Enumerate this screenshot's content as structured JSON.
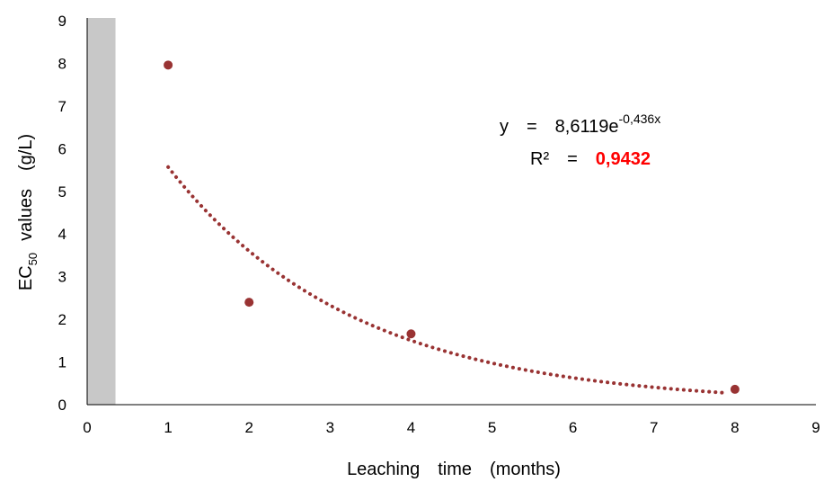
{
  "chart_data": {
    "type": "scatter",
    "xlabel": "Leaching time (months)",
    "ylabel_parts": [
      "EC",
      "50 ",
      "values (g/L)"
    ],
    "xlim": [
      0,
      9
    ],
    "ylim": [
      0,
      9
    ],
    "x_ticks": [
      "0",
      "1",
      "2",
      "3",
      "4",
      "5",
      "6",
      "7",
      "8",
      "9"
    ],
    "y_ticks": [
      "0",
      "1",
      "2",
      "3",
      "4",
      "5",
      "6",
      "7",
      "8",
      "9"
    ],
    "grid": false,
    "series": [
      {
        "x": [
          1,
          2,
          4,
          8
        ],
        "y": [
          7.96,
          2.4,
          1.66,
          0.36
        ],
        "color": "#993333"
      }
    ],
    "trendline": {
      "kind": "exponential",
      "a": 8.6119,
      "b": -0.436,
      "x_range": [
        1,
        7.9
      ],
      "color": "#993333",
      "style": "dotted"
    },
    "shaded_band": {
      "x_range": [
        0,
        0.35
      ],
      "color": "#c8c8c8"
    },
    "equation_parts": [
      "y = 8,6119e",
      "-0,436x"
    ],
    "r2_parts": [
      "R² = ",
      "0,9432"
    ],
    "r2_color": "#ff0000"
  }
}
